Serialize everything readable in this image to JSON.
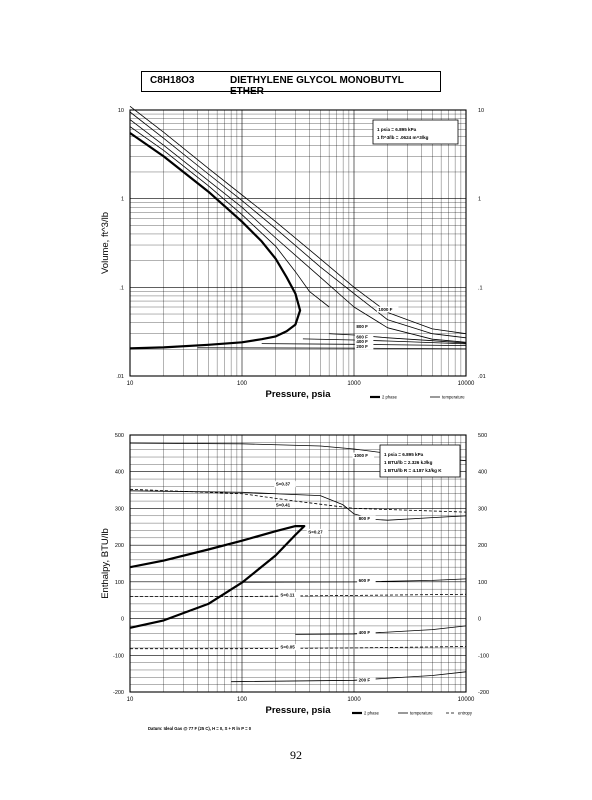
{
  "header": {
    "formula": "C8H18O3",
    "name": "DIETHYLENE GLYCOL MONOBUTYL ETHER"
  },
  "page_number": "92",
  "chart_data": [
    {
      "type": "line",
      "xlabel": "Pressure,  psia",
      "ylabel": "Volume, ft^3/lb",
      "xscale": "log",
      "yscale": "log",
      "xlim": [
        10,
        10000
      ],
      "ylim": [
        0.01,
        10
      ],
      "x_ticks": [
        "10",
        "100",
        "1000",
        "10000"
      ],
      "y_ticks": [
        "0.01",
        "0.1",
        "1",
        "10"
      ],
      "grid": true,
      "note": [
        "1 psia  =  6.895 kPa",
        "1 ft^3/lb  =  .0624 m^3/kg"
      ],
      "legend": [
        {
          "label": "2 phase",
          "style": "thick"
        },
        {
          "label": "temperature",
          "style": "thin"
        }
      ],
      "series": [
        {
          "name": "2 phase",
          "style": "thick",
          "x": [
            10,
            20,
            50,
            100,
            150,
            200,
            250,
            300,
            330,
            300,
            250,
            200,
            150,
            100,
            50,
            20,
            10
          ],
          "y": [
            5.5,
            3.0,
            1.2,
            0.55,
            0.33,
            0.21,
            0.13,
            0.085,
            0.055,
            0.038,
            0.032,
            0.028,
            0.026,
            0.024,
            0.0225,
            0.021,
            0.0205
          ]
        },
        {
          "style": "thin",
          "x": [
            10,
            20,
            50,
            100,
            200,
            300,
            400,
            600
          ],
          "y": [
            6.5,
            3.5,
            1.4,
            0.66,
            0.29,
            0.15,
            0.09,
            0.06
          ]
        },
        {
          "style": "thin",
          "x": [
            10,
            20,
            50,
            100,
            200,
            500,
            1000,
            2000,
            5000,
            10000
          ],
          "y": [
            7.8,
            4.0,
            1.6,
            0.8,
            0.36,
            0.13,
            0.06,
            0.035,
            0.026,
            0.024
          ]
        },
        {
          "style": "thin",
          "x": [
            10,
            20,
            50,
            100,
            200,
            500,
            1000,
            2000,
            5000,
            10000
          ],
          "y": [
            9.5,
            4.8,
            1.9,
            0.95,
            0.46,
            0.17,
            0.085,
            0.043,
            0.03,
            0.027
          ]
        },
        {
          "name": "1000 F",
          "style": "thin",
          "x": [
            10,
            20,
            50,
            100,
            200,
            500,
            1000,
            2000,
            5000,
            10000
          ],
          "y": [
            11,
            5.6,
            2.2,
            1.1,
            0.55,
            0.21,
            0.1,
            0.052,
            0.034,
            0.03
          ]
        },
        {
          "name": "800 F",
          "style": "thin",
          "x": [
            600,
            1000,
            2000,
            5000,
            10000
          ],
          "y": [
            0.03,
            0.029,
            0.027,
            0.025,
            0.0235
          ]
        },
        {
          "name": "600 F",
          "style": "thin",
          "x": [
            350,
            1000,
            2000,
            5000,
            10000
          ],
          "y": [
            0.0262,
            0.0255,
            0.0248,
            0.0238,
            0.023
          ]
        },
        {
          "name": "400 F",
          "style": "thin",
          "x": [
            150,
            1000,
            10000
          ],
          "y": [
            0.0232,
            0.0228,
            0.022
          ]
        },
        {
          "name": "200 F",
          "style": "thin",
          "x": [
            40,
            1000,
            10000
          ],
          "y": [
            0.0208,
            0.0206,
            0.0202
          ]
        }
      ],
      "curve_labels": [
        {
          "text": "1000 F",
          "x": 1650,
          "y": 0.054
        },
        {
          "text": "800 F",
          "x": 1050,
          "y": 0.035
        },
        {
          "text": "600 F",
          "x": 1050,
          "y": 0.0265
        },
        {
          "text": "400 F",
          "x": 1050,
          "y": 0.0235
        },
        {
          "text": "200 F",
          "x": 1050,
          "y": 0.0207
        }
      ]
    },
    {
      "type": "line",
      "xlabel": "Pressure,  psia",
      "ylabel": "Enthalpy, BTU/lb",
      "xscale": "log",
      "yscale": "linear",
      "xlim": [
        10,
        10000
      ],
      "ylim": [
        -200,
        500
      ],
      "x_ticks": [
        "10",
        "100",
        "1000",
        "10000"
      ],
      "y_ticks": [
        "-200",
        "-100",
        "0",
        "100",
        "200",
        "300",
        "400",
        "500"
      ],
      "grid": true,
      "note": [
        "1 psia  =  6.895 kPa",
        "1 BTU/lb  =  2.326 kJ/kg",
        "1 BTU/lb R  =  4.187 kJ/kg K"
      ],
      "datum": "Datum: Ideal Gas @ 77 F (25 C),  H = 0,  S + R ln P = 0",
      "legend": [
        {
          "label": "2 phase",
          "style": "thick"
        },
        {
          "label": "temperature",
          "style": "thin"
        },
        {
          "label": "entropy",
          "style": "dashed"
        }
      ],
      "series": [
        {
          "name": "2 phase",
          "style": "thick",
          "x": [
            10,
            20,
            50,
            100,
            200,
            300,
            360,
            300,
            200,
            100,
            50,
            20,
            10
          ],
          "y": [
            140,
            158,
            188,
            212,
            238,
            252,
            252,
            228,
            172,
            98,
            40,
            -5,
            -25
          ]
        },
        {
          "name": "1000 F",
          "style": "thin",
          "x": [
            10,
            100,
            500,
            1000,
            2000,
            5000,
            10000
          ],
          "y": [
            478,
            476,
            470,
            462,
            450,
            438,
            430
          ]
        },
        {
          "name": "800 F",
          "style": "thin",
          "x": [
            10,
            100,
            500,
            800,
            1000,
            1500,
            2000,
            5000,
            10000
          ],
          "y": [
            348,
            344,
            335,
            310,
            285,
            270,
            268,
            275,
            280
          ]
        },
        {
          "name": "600 F",
          "style": "thin",
          "x": [
            100,
            1000,
            5000,
            10000
          ],
          "y": [
            99,
            100,
            104,
            108
          ]
        },
        {
          "name": "400 F",
          "style": "thin",
          "x": [
            300,
            1000,
            5000,
            10000
          ],
          "y": [
            -43,
            -42,
            -30,
            -20
          ]
        },
        {
          "name": "200 F",
          "style": "thin",
          "x": [
            80,
            1000,
            5000,
            10000
          ],
          "y": [
            -172,
            -168,
            -155,
            -145
          ]
        },
        {
          "name": "S=0.37",
          "style": "dashed",
          "x": [
            10,
            100,
            300,
            1000,
            10000
          ],
          "y": [
            352,
            340,
            320,
            300,
            290
          ]
        },
        {
          "name": "S=0.11",
          "style": "dashed",
          "x": [
            10,
            100,
            1000,
            10000
          ],
          "y": [
            60,
            60,
            63,
            66
          ]
        },
        {
          "name": "S=0.05",
          "style": "dashed",
          "x": [
            10,
            100,
            1000,
            10000
          ],
          "y": [
            -82,
            -82,
            -80,
            -76
          ]
        }
      ],
      "curve_labels": [
        {
          "text": "1000 F",
          "x": 1000,
          "y": 440
        },
        {
          "text": "800 F",
          "x": 1100,
          "y": 268
        },
        {
          "text": "600 F",
          "x": 1100,
          "y": 100
        },
        {
          "text": "400 F",
          "x": 1100,
          "y": -42
        },
        {
          "text": "200 F",
          "x": 1100,
          "y": -172
        },
        {
          "text": "S=0.37",
          "x": 200,
          "y": 362
        },
        {
          "text": "S=0.41",
          "x": 200,
          "y": 305
        },
        {
          "text": "S=0.27",
          "x": 390,
          "y": 232
        },
        {
          "text": "S=0.11",
          "x": 220,
          "y": 60
        },
        {
          "text": "S=0.05",
          "x": 220,
          "y": -82
        }
      ]
    }
  ]
}
